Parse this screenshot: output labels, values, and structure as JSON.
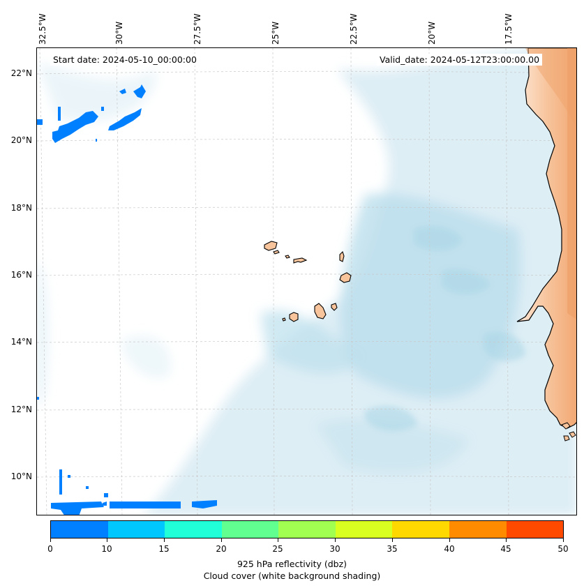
{
  "header": {
    "start_date": "Start date: 2024-05-10_00:00:00",
    "valid_date": "Valid_date: 2024-05-12T23:00:00.00"
  },
  "axes": {
    "longitude_labels": [
      "32.5°W",
      "30°W",
      "27.5°W",
      "25°W",
      "22.5°W",
      "20°W",
      "17.5°W"
    ],
    "latitude_labels": [
      "22°N",
      "20°N",
      "18°N",
      "16°N",
      "14°N",
      "12°N",
      "10°N"
    ]
  },
  "colorbar": {
    "ticks": [
      "0",
      "10",
      "15",
      "20",
      "25",
      "30",
      "35",
      "40",
      "45",
      "50"
    ],
    "colors": [
      "#0080ff",
      "#00c8ff",
      "#20ffd8",
      "#60ff90",
      "#a0ff50",
      "#d8ff20",
      "#ffd800",
      "#ff8c00",
      "#ff4a00"
    ],
    "label": "925 hPa reflectivity (dbz)",
    "sublabel": "Cloud cover (white background shading)"
  },
  "colors": {
    "land": "#f5b98a",
    "cloud_light": "#d7ebf3",
    "cloud_mid": "#bcdfec",
    "reflectivity_low": "#0080ff"
  }
}
